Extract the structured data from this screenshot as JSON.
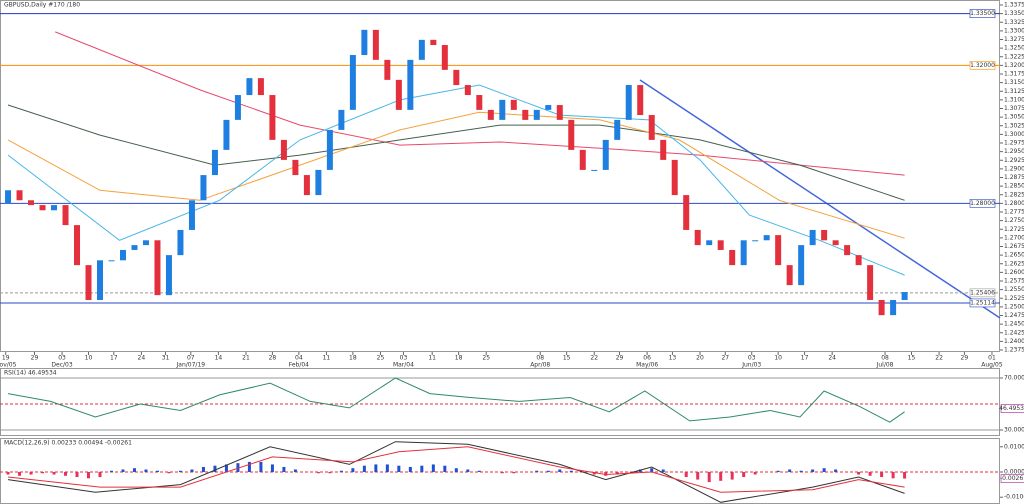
{
  "chart_data": [
    {
      "type": "candlestick",
      "title": "GBPUSD,Daily #170 /180",
      "xlim": [
        -0.7,
        86.3
      ],
      "ylim": [
        1.2375,
        1.3375
      ],
      "yticks": [
        {
          "value": 1.2375,
          "label": "1.23750"
        },
        {
          "value": 1.24,
          "label": "1.24000"
        },
        {
          "value": 1.2425,
          "label": "1.24250"
        },
        {
          "value": 1.245,
          "label": "1.24500"
        },
        {
          "value": 1.2475,
          "label": "1.24750"
        },
        {
          "value": 1.25,
          "label": "1.25000"
        },
        {
          "value": 1.2525,
          "label": "1.25250"
        },
        {
          "value": 1.255,
          "label": "1.25500"
        },
        {
          "value": 1.2575,
          "label": "1.25750"
        },
        {
          "value": 1.26,
          "label": "1.26000"
        },
        {
          "value": 1.2625,
          "label": "1.26250"
        },
        {
          "value": 1.265,
          "label": "1.26500"
        },
        {
          "value": 1.2675,
          "label": "1.26750"
        },
        {
          "value": 1.27,
          "label": "1.27000"
        },
        {
          "value": 1.2725,
          "label": "1.27250"
        },
        {
          "value": 1.275,
          "label": "1.27500"
        },
        {
          "value": 1.2775,
          "label": "1.27750"
        },
        {
          "value": 1.28,
          "label": "1.28000"
        },
        {
          "value": 1.2825,
          "label": "1.28250"
        },
        {
          "value": 1.285,
          "label": "1.28500"
        },
        {
          "value": 1.2875,
          "label": "1.28750"
        },
        {
          "value": 1.29,
          "label": "1.29000"
        },
        {
          "value": 1.2925,
          "label": "1.29250"
        },
        {
          "value": 1.295,
          "label": "1.29500"
        },
        {
          "value": 1.2975,
          "label": "1.29750"
        },
        {
          "value": 1.3,
          "label": "1.30000"
        },
        {
          "value": 1.3025,
          "label": "1.30250"
        },
        {
          "value": 1.305,
          "label": "1.30500"
        },
        {
          "value": 1.3075,
          "label": "1.30750"
        },
        {
          "value": 1.31,
          "label": "1.31000"
        },
        {
          "value": 1.3125,
          "label": "1.31250"
        },
        {
          "value": 1.315,
          "label": "1.31500"
        },
        {
          "value": 1.3175,
          "label": "1.31750"
        },
        {
          "value": 1.32,
          "label": "1.32000"
        },
        {
          "value": 1.3225,
          "label": "1.32250"
        },
        {
          "value": 1.325,
          "label": "1.32500"
        },
        {
          "value": 1.3275,
          "label": "1.32750"
        },
        {
          "value": 1.33,
          "label": "1.33000"
        },
        {
          "value": 1.3325,
          "label": "1.33250"
        },
        {
          "value": 1.335,
          "label": "1.33500"
        },
        {
          "value": 1.3375,
          "label": "1.33750"
        }
      ],
      "xticks": [
        {
          "value": -0.2,
          "label": "19"
        },
        {
          "value": 2.3,
          "label": "29"
        },
        {
          "value": 4.7,
          "label": "03"
        },
        {
          "value": 7,
          "label": "10"
        },
        {
          "value": 9.2,
          "label": "17"
        },
        {
          "value": 11.6,
          "label": "24"
        },
        {
          "value": 13.7,
          "label": "31"
        },
        {
          "value": 15.9,
          "label": "07"
        },
        {
          "value": 18.3,
          "label": "14"
        },
        {
          "value": 20.7,
          "label": "21"
        },
        {
          "value": 23,
          "label": "28"
        },
        {
          "value": 25.3,
          "label": "04"
        },
        {
          "value": 27.7,
          "label": "11"
        },
        {
          "value": 30,
          "label": "18"
        },
        {
          "value": 32.4,
          "label": "25"
        },
        {
          "value": 34.4,
          "label": "03"
        },
        {
          "value": 36.9,
          "label": "11"
        },
        {
          "value": 39.2,
          "label": "18"
        },
        {
          "value": 41.6,
          "label": "25"
        },
        {
          "value": 46.3,
          "label": "08"
        },
        {
          "value": 48.6,
          "label": "15"
        },
        {
          "value": 51,
          "label": "22"
        },
        {
          "value": 53.2,
          "label": "29"
        },
        {
          "value": 55.6,
          "label": "06"
        },
        {
          "value": 57.8,
          "label": "13"
        },
        {
          "value": 60.2,
          "label": "20"
        },
        {
          "value": 62.4,
          "label": "27"
        },
        {
          "value": 64.7,
          "label": "03"
        },
        {
          "value": 67,
          "label": "10"
        },
        {
          "value": 69.3,
          "label": "17"
        },
        {
          "value": 71.7,
          "label": "24"
        },
        {
          "value": 76.3,
          "label": "08"
        },
        {
          "value": 78.6,
          "label": "15"
        },
        {
          "value": 81,
          "label": "22"
        },
        {
          "value": 83.2,
          "label": "29"
        },
        {
          "value": 85.6,
          "label": "01"
        }
      ],
      "xticks2": [
        {
          "value": -0.2,
          "label": "Nov/05"
        },
        {
          "value": 4.7,
          "label": "Dec/03"
        },
        {
          "value": 15.9,
          "label": "Jan/07/19"
        },
        {
          "value": 25.3,
          "label": "Feb/04"
        },
        {
          "value": 34.4,
          "label": "Mar/04"
        },
        {
          "value": 46.3,
          "label": "Apr/08"
        },
        {
          "value": 55.6,
          "label": "May/06"
        },
        {
          "value": 64.7,
          "label": "Jun/03"
        },
        {
          "value": 76.3,
          "label": "Jul/08"
        },
        {
          "value": 85.6,
          "label": "Aug/05"
        }
      ],
      "up_color": "#1e7fe0",
      "down_color": "#e3303c",
      "open": [
        1.28,
        1.2838,
        1.2809,
        1.2795,
        1.278,
        1.2795,
        1.2737,
        1.2621,
        1.252,
        1.2635,
        1.2635,
        1.2665,
        1.2679,
        1.2693,
        1.2534,
        1.265,
        1.2723,
        1.2809,
        1.2882,
        1.2955,
        1.3042,
        1.3114,
        1.3163,
        1.3114,
        1.2984,
        1.2926,
        1.2882,
        1.2824,
        1.2897,
        1.3013,
        1.3071,
        1.323,
        1.3303,
        1.3216,
        1.3158,
        1.3071,
        1.3216,
        1.3274,
        1.3259,
        1.3187,
        1.3143,
        1.3114,
        1.3071,
        1.3042,
        1.31,
        1.3071,
        1.3042,
        1.3071,
        1.3085,
        1.3042,
        1.2955,
        1.2897,
        1.2897,
        1.2984,
        1.3042,
        1.3143,
        1.3056,
        1.2984,
        1.2926,
        1.2824,
        1.2723,
        1.2679,
        1.2693,
        1.2665,
        1.2621,
        1.2693,
        1.2693,
        1.2708,
        1.2621,
        1.2563,
        1.2679,
        1.2723,
        1.2693,
        1.2679,
        1.265,
        1.2621,
        1.252,
        1.2476,
        1.252
      ],
      "close": [
        1.2838,
        1.2809,
        1.2795,
        1.278,
        1.2795,
        1.2737,
        1.2621,
        1.252,
        1.2635,
        1.2635,
        1.2665,
        1.2679,
        1.2693,
        1.2534,
        1.265,
        1.2723,
        1.2809,
        1.2882,
        1.2955,
        1.3042,
        1.3114,
        1.3163,
        1.3114,
        1.2984,
        1.2926,
        1.2882,
        1.2824,
        1.2897,
        1.3013,
        1.3071,
        1.323,
        1.3303,
        1.3216,
        1.3158,
        1.3071,
        1.3216,
        1.3274,
        1.3259,
        1.3187,
        1.3143,
        1.3114,
        1.3071,
        1.3042,
        1.31,
        1.3071,
        1.3042,
        1.3071,
        1.3085,
        1.3042,
        1.2955,
        1.2897,
        1.2897,
        1.2984,
        1.3042,
        1.3143,
        1.3056,
        1.2984,
        1.2926,
        1.2824,
        1.2723,
        1.2679,
        1.2693,
        1.2665,
        1.2621,
        1.2693,
        1.2693,
        1.2708,
        1.2621,
        1.2563,
        1.2679,
        1.2723,
        1.2693,
        1.2679,
        1.265,
        1.2621,
        1.252,
        1.2476,
        1.252,
        1.2543
      ],
      "overlays": [
        {
          "color": "#e8496b",
          "x": [
            4.1,
            16.7,
            25.4,
            34.1,
            42.8,
            51.5,
            60.2,
            68.9,
            78
          ],
          "values": [
            1.3297,
            1.3129,
            1.3027,
            1.2969,
            1.2978,
            1.296,
            1.294,
            1.2911,
            1.2882
          ]
        },
        {
          "color": "#44604c",
          "x": [
            0,
            8,
            18,
            25.4,
            34.1,
            42.8,
            51.5,
            60.2,
            68.9,
            78
          ],
          "values": [
            1.3085,
            1.2998,
            1.2911,
            1.294,
            1.2984,
            1.3027,
            1.3027,
            1.2984,
            1.2911,
            1.2809
          ]
        },
        {
          "color": "#f4a23c",
          "x": [
            0,
            8,
            16.7,
            25.4,
            34.1,
            41,
            51.5,
            58.4,
            67.1,
            78
          ],
          "values": [
            1.2984,
            1.2838,
            1.2809,
            1.2911,
            1.3013,
            1.3064,
            1.3042,
            1.2984,
            1.2809,
            1.2699
          ]
        },
        {
          "color": "#49b6e8",
          "x": [
            0,
            9.7,
            18.4,
            25.4,
            34.1,
            41,
            48,
            55.8,
            60.2,
            64.5,
            70.6,
            78
          ],
          "values": [
            1.294,
            1.2693,
            1.2809,
            1.2984,
            1.31,
            1.3143,
            1.3056,
            1.3042,
            1.2926,
            1.2766,
            1.2693,
            1.2592
          ]
        }
      ],
      "levels": [
        {
          "value": 1.335,
          "label": "1.33500",
          "color": "#2238b8"
        },
        {
          "value": 1.32,
          "label": "1.32000",
          "color": "#ff8c00"
        },
        {
          "value": 1.28,
          "label": "1.28000",
          "color": "#2a4bc4"
        },
        {
          "value": 1.25114,
          "label": "1.25114",
          "color": "#2a4bc4"
        },
        {
          "value": 1.25406,
          "label": "1.25406",
          "color": "#999999",
          "dash": true
        }
      ]
    },
    {
      "type": "line",
      "title": "RSI(14) 46.49534",
      "xlim": [
        -0.7,
        86.3
      ],
      "ylim": [
        27.7,
        74.6
      ],
      "yticks": [
        {
          "value": 70,
          "label": "70.00000"
        },
        {
          "value": 30,
          "label": "30.00000"
        }
      ],
      "series": [
        {
          "color": "#2e8a6a",
          "x": [
            0,
            3.7,
            7.6,
            11.5,
            15,
            18.4,
            22.8,
            26.3,
            29.7,
            33.7,
            36.7,
            40.2,
            44.5,
            48.9,
            52.3,
            55.4,
            59.3,
            62.8,
            66.3,
            68.9,
            71,
            74.1,
            76.7,
            78
          ],
          "values": [
            58,
            52,
            40,
            50,
            45,
            57,
            66,
            52,
            47,
            70,
            58,
            55,
            52,
            55,
            44,
            60,
            37,
            40,
            45,
            40,
            60,
            48,
            36,
            44
          ]
        }
      ],
      "levels": [
        {
          "value": 70,
          "color": "#999999"
        },
        {
          "value": 50,
          "color": "#e3303c",
          "dash": true
        },
        {
          "value": 30,
          "color": "#999999"
        },
        {
          "value": 46.49534,
          "label": "46.49534",
          "color": "#a020a0",
          "marker": true
        }
      ]
    },
    {
      "type": "bar",
      "title": "MACD(12,26,9) 0.00233 0.00494 -0.00261",
      "xlim": [
        -0.7,
        86.3
      ],
      "ylim": [
        -0.0115,
        0.0115
      ],
      "yticks": [
        {
          "value": 0.01,
          "label": "0.01000"
        },
        {
          "value": 0,
          "label": "0.00000"
        },
        {
          "value": -0.01,
          "label": "-0.01000"
        }
      ],
      "up_color": "#2050d0",
      "down_color": "#e8315a",
      "values": [
        -0.001,
        -0.0015,
        -0.001,
        -0.0005,
        -0.001,
        -0.0015,
        -0.002,
        -0.0025,
        -0.002,
        0.0005,
        0.001,
        0.0015,
        0.001,
        0.0005,
        -0.0005,
        0.0005,
        0.001,
        0.002,
        0.0025,
        0.003,
        0.0035,
        0.004,
        0.004,
        0.003,
        0.002,
        0.001,
        0,
        -0.0005,
        -0.0005,
        0.0005,
        0.0015,
        0.0025,
        0.003,
        0.003,
        0.0025,
        0.002,
        0.0025,
        0.003,
        0.0025,
        0.0015,
        0.001,
        0.0005,
        0,
        -0.0005,
        -0.0005,
        0,
        0.0005,
        0.0005,
        0.001,
        0.0005,
        0,
        -0.001,
        -0.0015,
        -0.001,
        0,
        0.001,
        0.0015,
        0.001,
        0,
        -0.002,
        -0.003,
        -0.004,
        -0.0035,
        -0.003,
        -0.002,
        -0.001,
        0,
        0.0005,
        0.001,
        0.0005,
        0.001,
        0.0015,
        0.001,
        0,
        -0.001,
        -0.0015,
        -0.002,
        -0.0025,
        -0.0026
      ],
      "series": [
        {
          "color": "#333333",
          "x": [
            0,
            7.6,
            15,
            22.8,
            29.7,
            33.7,
            40,
            48,
            52,
            56,
            62,
            70,
            74,
            78
          ],
          "values": [
            -0.003,
            -0.008,
            -0.005,
            0.01,
            0.003,
            0.012,
            0.011,
            0.003,
            -0.003,
            0.002,
            -0.012,
            -0.006,
            -0.002,
            -0.0085
          ]
        },
        {
          "color": "#e3303c",
          "x": [
            0,
            8,
            15,
            23,
            30,
            34,
            40,
            48,
            52,
            56,
            62,
            70,
            74,
            78
          ],
          "values": [
            -0.002,
            -0.006,
            -0.006,
            0.006,
            0.004,
            0.008,
            0.01,
            0.002,
            -0.001,
            0,
            -0.008,
            -0.007,
            -0.003,
            -0.006
          ]
        }
      ],
      "levels": [
        {
          "value": 0,
          "color": "#e3303c",
          "dash": true
        },
        {
          "value": -0.00261,
          "label": "-0.00261",
          "color": "#a020a0",
          "marker": true
        }
      ]
    }
  ]
}
